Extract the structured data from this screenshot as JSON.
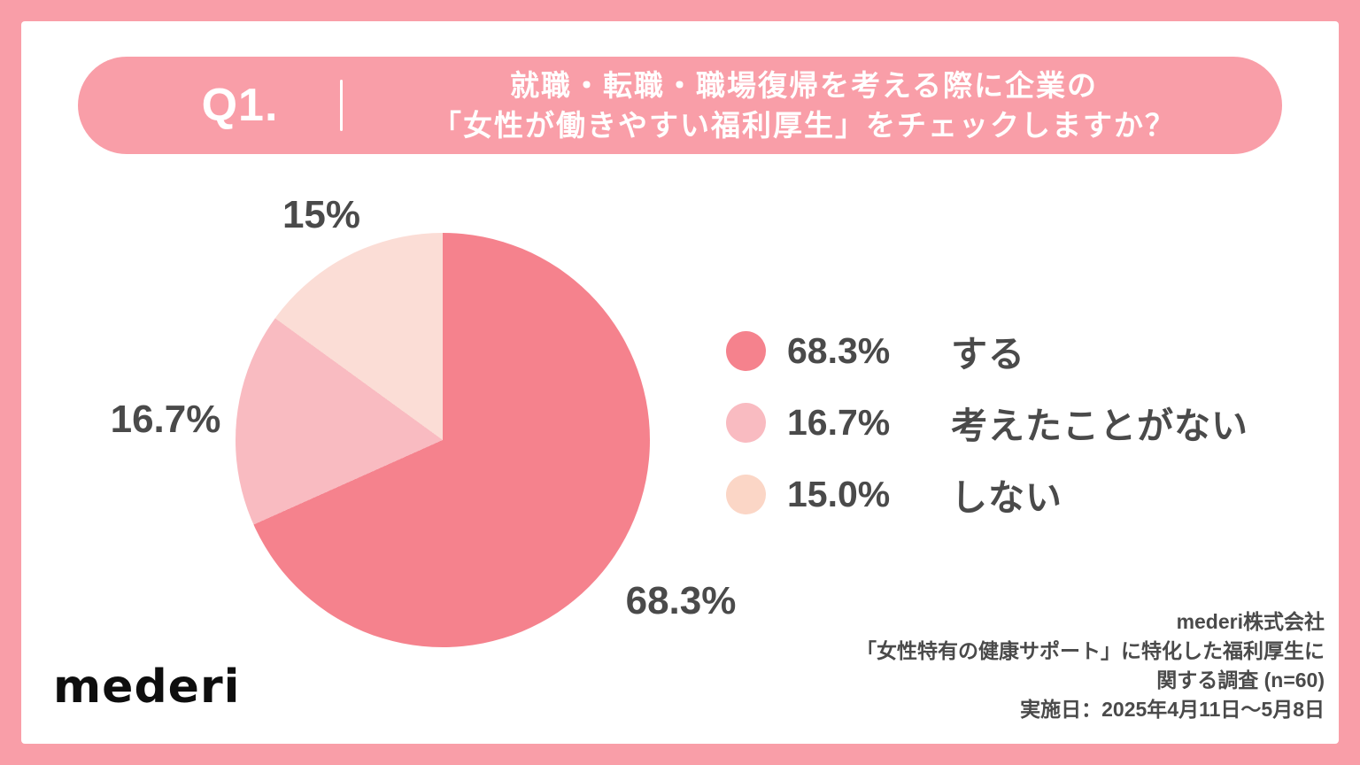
{
  "page": {
    "frame_color": "#F99EA8",
    "card_color": "#FFFFFF"
  },
  "header": {
    "q_label": "Q1.",
    "title_line1": "就職・転職・職場復帰を考える際に企業の",
    "title_line2": "「女性が働きやすい福利厚生」をチェックしますか？",
    "bg_color": "#F99EA8",
    "text_color": "#FFFFFF"
  },
  "chart_data": {
    "type": "pie",
    "title": "就職・転職・職場復帰を考える際に企業の「女性が働きやすい福利厚生」をチェックしますか？",
    "start_angle_deg": 0,
    "direction": "clockwise",
    "legend_position": "right",
    "slices": [
      {
        "label": "する",
        "value": 68.3,
        "display_pct": "68.3%",
        "color": "#F5828D"
      },
      {
        "label": "考えたことがない",
        "value": 16.7,
        "display_pct": "16.7%",
        "color": "#F9BBC1"
      },
      {
        "label": "しない",
        "value": 15.0,
        "display_pct": "15.0%",
        "color": "#FBDDD6"
      }
    ],
    "outer_labels": [
      {
        "text": "15%",
        "position": "top-left"
      },
      {
        "text": "16.7%",
        "position": "left"
      },
      {
        "text": "68.3%",
        "position": "bottom-right"
      }
    ]
  },
  "legend": {
    "items": [
      {
        "pct": "68.3%",
        "label": "する",
        "color": "#F5828D"
      },
      {
        "pct": "16.7%",
        "label": "考えたことがない",
        "color": "#F9BBC1"
      },
      {
        "pct": "15.0%",
        "label": "しない",
        "color": "#FBD6C6"
      }
    ]
  },
  "footer": {
    "logo_text": "mederi",
    "source_lines": [
      "mederi株式会社",
      "「女性特有の健康サポート」に特化した福利厚生に",
      "関する調査 (n=60)",
      "実施日：2025年4月11日〜5月8日"
    ]
  }
}
